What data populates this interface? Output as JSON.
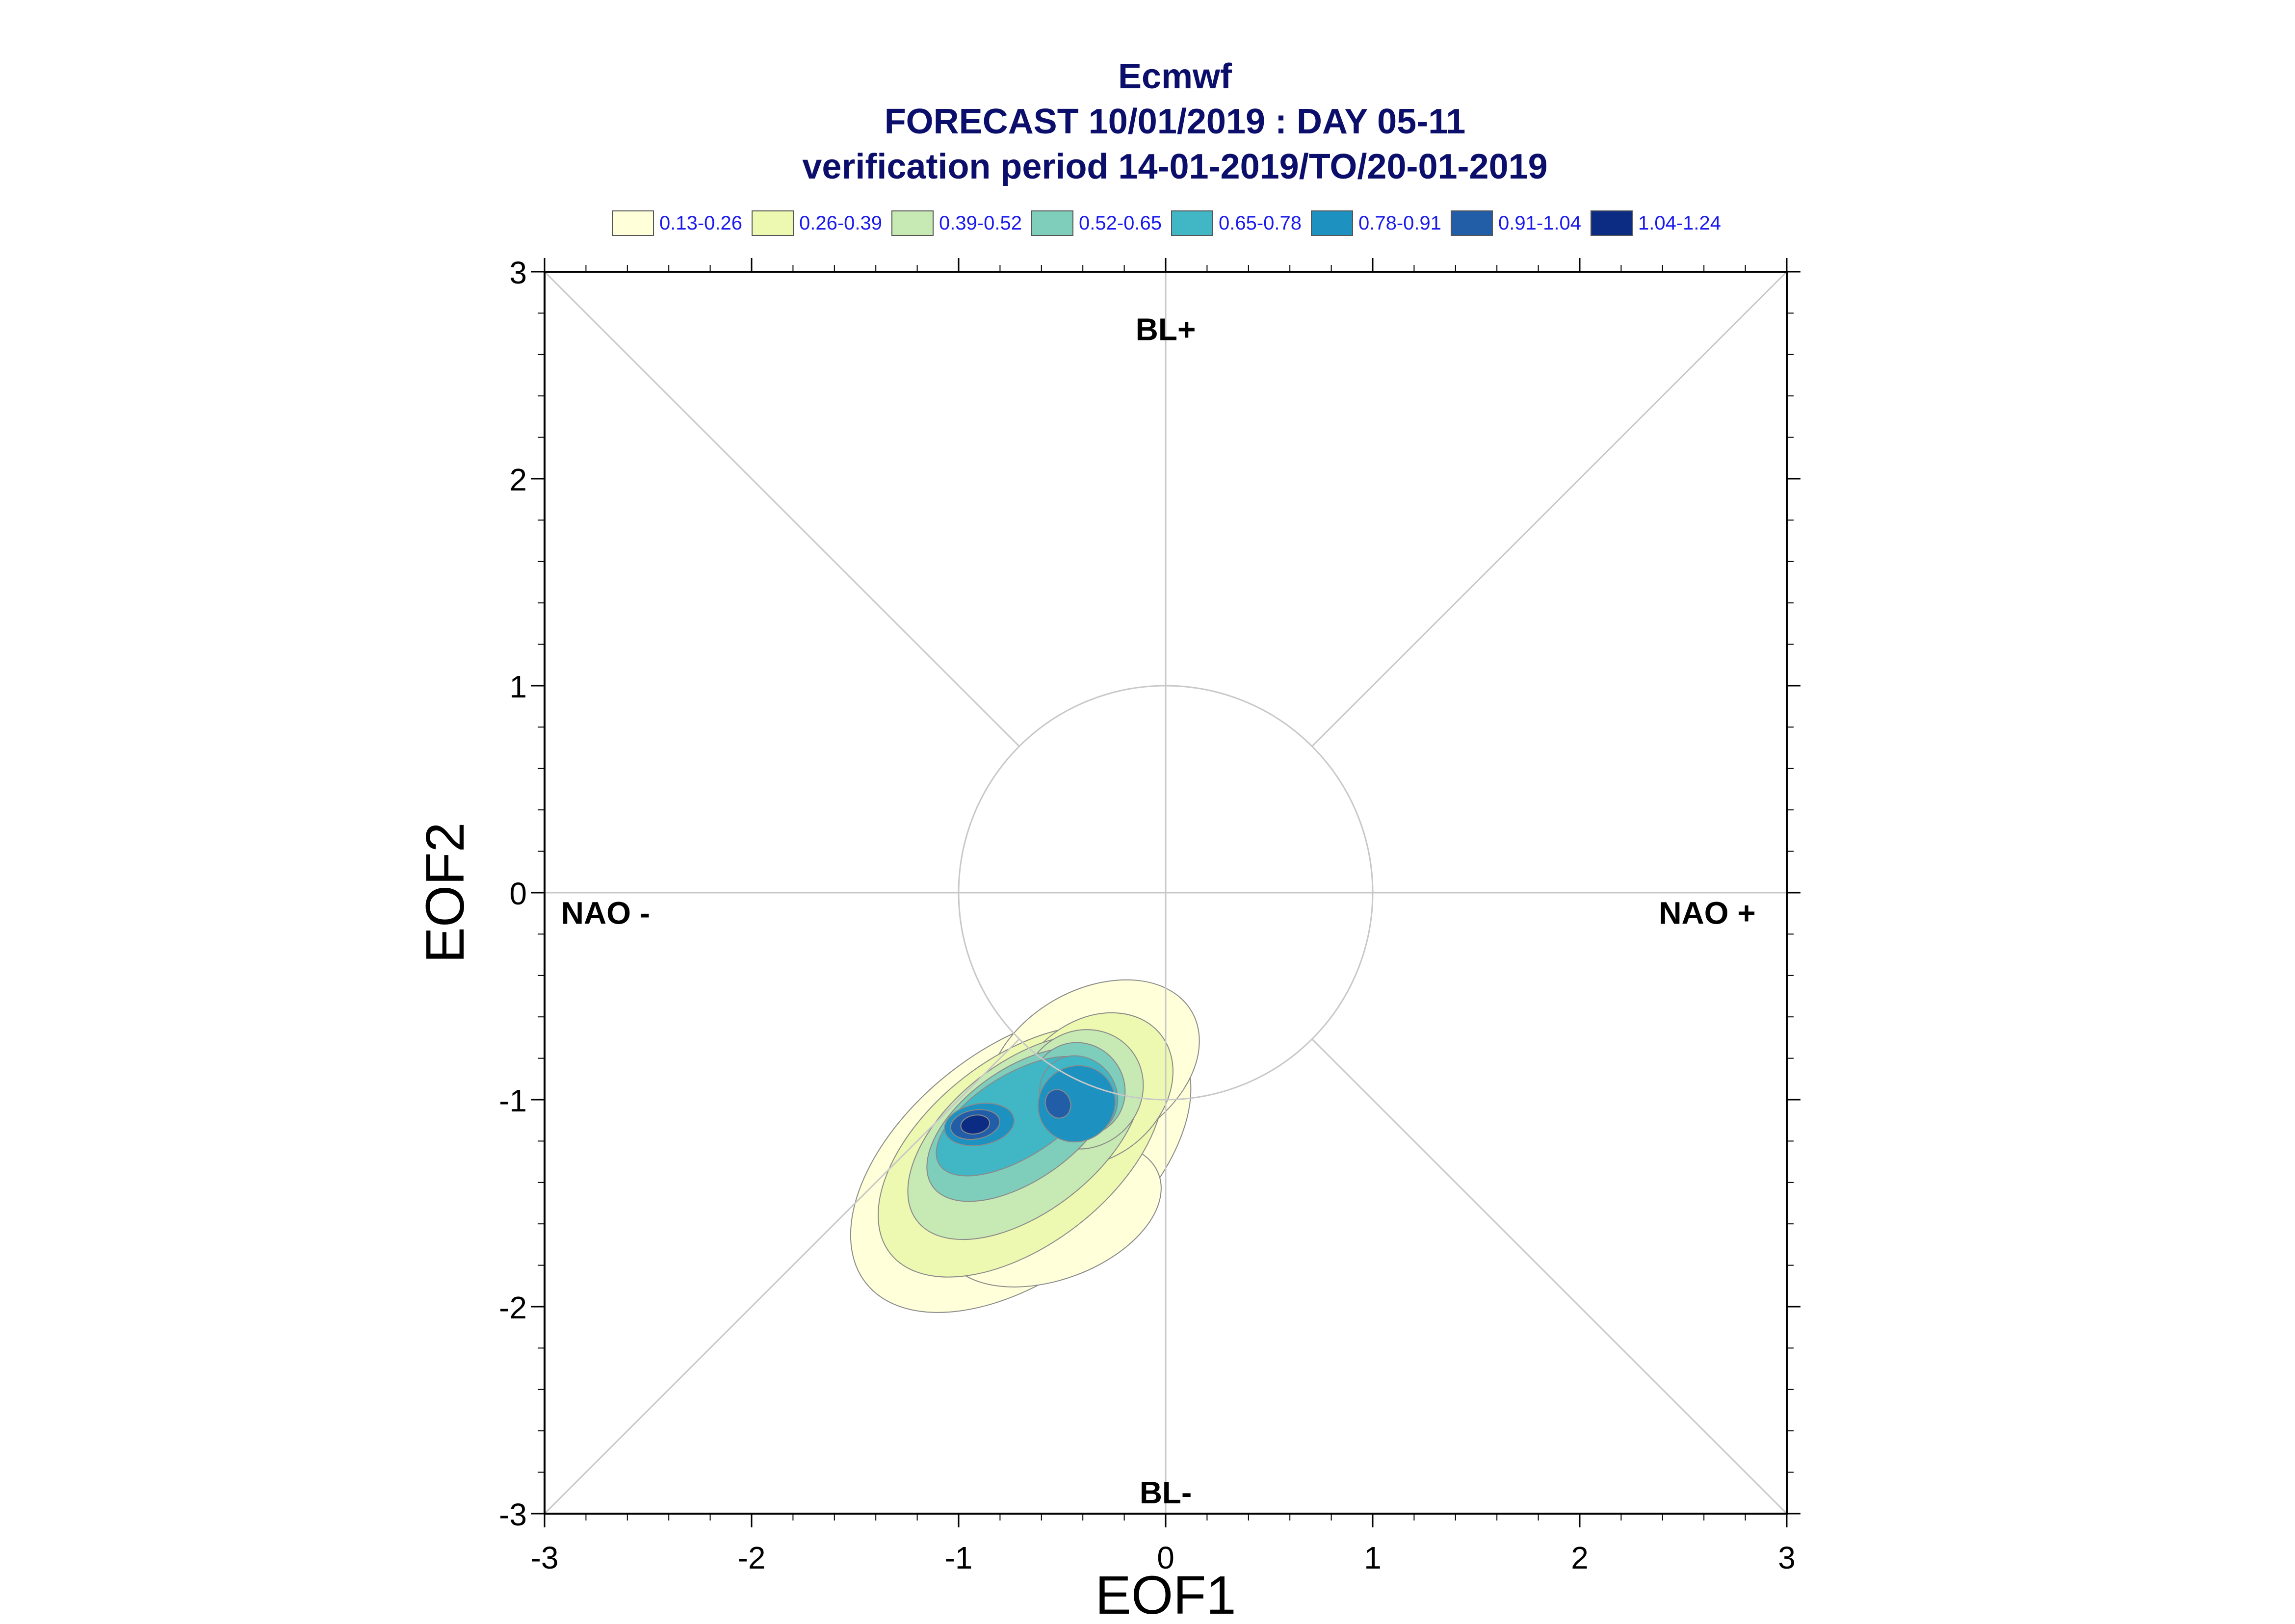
{
  "chart_data": {
    "type": "contour",
    "title": "Ecmwf",
    "subtitle": [
      "FORECAST 10/01/2019 : DAY 05-11",
      "verification period 14-01-2019/TO/20-01-2019"
    ],
    "xlabel": "EOF1",
    "ylabel": "EOF2",
    "xlim": [
      -3,
      3
    ],
    "ylim": [
      -3,
      3
    ],
    "xticks": [
      "-3",
      "-2",
      "-1",
      "0",
      "1",
      "2",
      "3"
    ],
    "yticks": [
      "-3",
      "-2",
      "-1",
      "0",
      "1",
      "2",
      "3"
    ],
    "reference_circle_radius": 1,
    "region_labels": {
      "top": "BL+",
      "bottom": "BL-",
      "left": "NAO -",
      "right": "NAO +"
    },
    "legend": {
      "placement": "top",
      "levels": [
        {
          "label": "0.13-0.26",
          "color": "#ffffd9"
        },
        {
          "label": "0.26-0.39",
          "color": "#edf8b1"
        },
        {
          "label": "0.39-0.52",
          "color": "#c7e9b4"
        },
        {
          "label": "0.52-0.65",
          "color": "#7fcdbb"
        },
        {
          "label": "0.65-0.78",
          "color": "#41b6c4"
        },
        {
          "label": "0.78-0.91",
          "color": "#1d91c0"
        },
        {
          "label": "0.91-1.04",
          "color": "#225ea8"
        },
        {
          "label": "1.04-1.24",
          "color": "#0c2c84"
        }
      ]
    },
    "density_peaks": [
      {
        "x": -0.92,
        "y": -1.12,
        "max_level": "1.04-1.24"
      },
      {
        "x": -0.5,
        "y": -1.05,
        "max_level": "0.91-1.04"
      }
    ]
  }
}
